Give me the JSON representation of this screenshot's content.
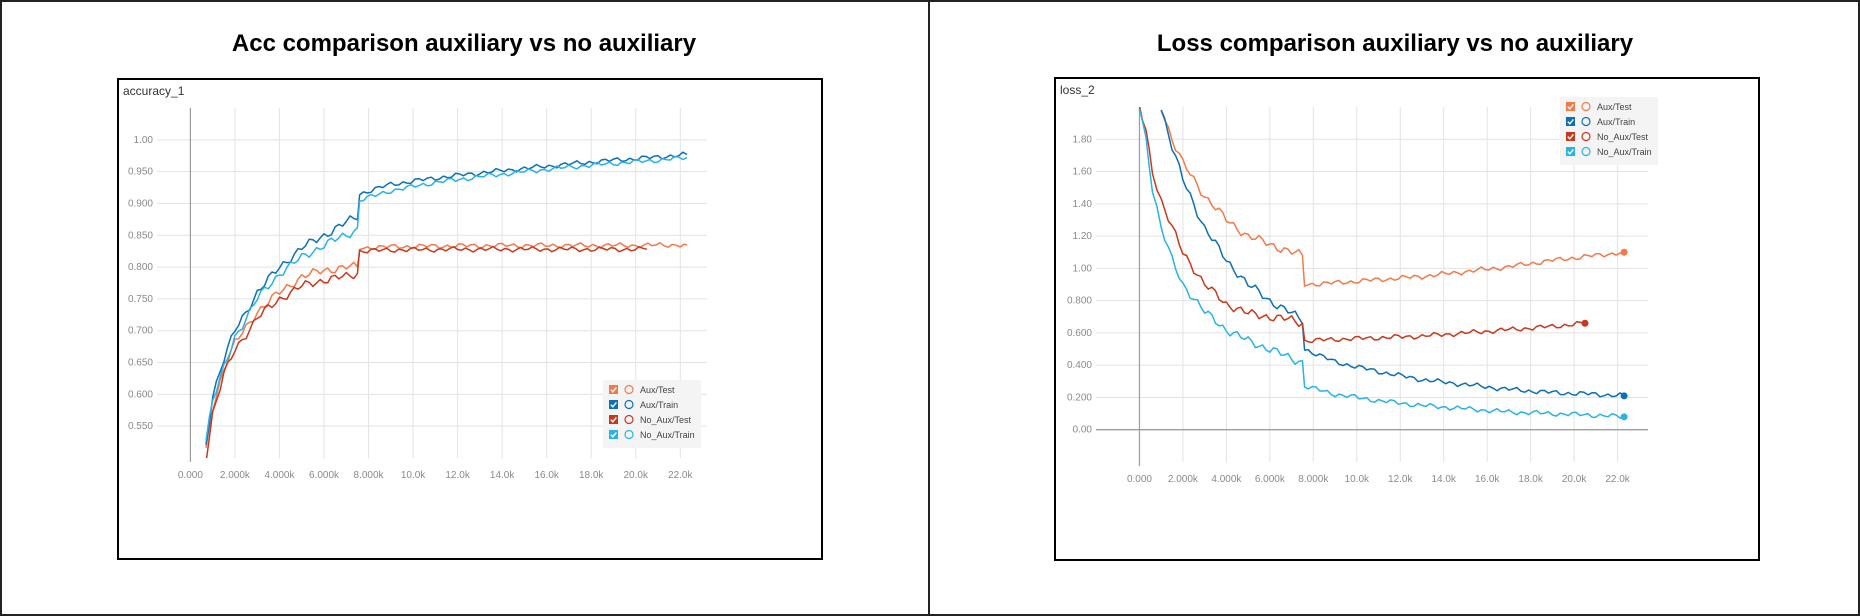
{
  "colors": {
    "aux_test": "#f4794a",
    "aux_train": "#0e6fb6",
    "no_aux_test": "#c9381e",
    "no_aux_train": "#29b2e6"
  },
  "legend_icons": [
    "checkbox-icon",
    "circle-icon"
  ],
  "chart_data": [
    {
      "type": "line",
      "title": "Acc comparison auxiliary vs no auxiliary",
      "plot_label": "accuracy_1",
      "xlabel": "",
      "ylabel": "",
      "xlim": [
        -1500,
        23200
      ],
      "ylim": [
        0.5,
        1.05
      ],
      "x_ticks": [
        0,
        2000,
        4000,
        6000,
        8000,
        10000,
        12000,
        14000,
        16000,
        18000,
        20000,
        22000
      ],
      "x_tick_labels": [
        "0.000",
        "2.000k",
        "4.000k",
        "6.000k",
        "8.000k",
        "10.0k",
        "12.0k",
        "14.0k",
        "16.0k",
        "18.0k",
        "20.0k",
        "22.0k"
      ],
      "y_ticks": [
        0.55,
        0.6,
        0.65,
        0.7,
        0.75,
        0.8,
        0.85,
        0.9,
        0.95,
        1.0
      ],
      "y_tick_labels": [
        "0.550",
        "0.600",
        "0.650",
        "0.700",
        "0.750",
        "0.800",
        "0.850",
        "0.900",
        "0.950",
        "1.00"
      ],
      "grid": true,
      "legend": "bottom-right",
      "series": [
        {
          "name": "Aux/Test",
          "color_key": "aux_test",
          "x": [
            700,
            1000,
            1500,
            2000,
            3000,
            4000,
            5000,
            6000,
            7000,
            7500,
            7600,
            9000,
            11000,
            14000,
            17000,
            20000,
            22000,
            22300
          ],
          "y": [
            0.51,
            0.58,
            0.64,
            0.68,
            0.73,
            0.76,
            0.785,
            0.795,
            0.8,
            0.8,
            0.83,
            0.832,
            0.833,
            0.834,
            0.834,
            0.834,
            0.835,
            0.835
          ]
        },
        {
          "name": "Aux/Train",
          "color_key": "aux_train",
          "x": [
            700,
            1000,
            1500,
            2000,
            3000,
            4000,
            5000,
            6000,
            7000,
            7500,
            7600,
            9000,
            11000,
            13000,
            15000,
            17000,
            19000,
            21000,
            22300
          ],
          "y": [
            0.52,
            0.6,
            0.655,
            0.7,
            0.76,
            0.8,
            0.83,
            0.85,
            0.87,
            0.88,
            0.915,
            0.93,
            0.94,
            0.948,
            0.955,
            0.962,
            0.968,
            0.973,
            0.977
          ]
        },
        {
          "name": "No_Aux/Test",
          "color_key": "no_aux_test",
          "x": [
            700,
            1000,
            1500,
            2000,
            3000,
            4000,
            5000,
            6000,
            7000,
            7500,
            7600,
            9000,
            12000,
            15000,
            18000,
            20500
          ],
          "y": [
            0.5,
            0.57,
            0.63,
            0.67,
            0.72,
            0.75,
            0.77,
            0.78,
            0.785,
            0.79,
            0.825,
            0.827,
            0.828,
            0.828,
            0.828,
            0.828
          ]
        },
        {
          "name": "No_Aux/Train",
          "color_key": "no_aux_train",
          "x": [
            700,
            1000,
            1500,
            2000,
            3000,
            4000,
            5000,
            6000,
            7000,
            7500,
            7600,
            9000,
            11000,
            13000,
            15000,
            17000,
            19000,
            21000,
            22300
          ],
          "y": [
            0.53,
            0.59,
            0.64,
            0.69,
            0.75,
            0.79,
            0.815,
            0.835,
            0.85,
            0.86,
            0.905,
            0.92,
            0.933,
            0.942,
            0.95,
            0.957,
            0.963,
            0.968,
            0.972
          ]
        }
      ]
    },
    {
      "type": "line",
      "title": "Loss comparison auxiliary vs no auxiliary",
      "plot_label": "loss_2",
      "xlabel": "",
      "ylabel": "",
      "xlim": [
        -2000,
        23400
      ],
      "ylim": [
        -0.2,
        2.0
      ],
      "x_ticks": [
        0,
        2000,
        4000,
        6000,
        8000,
        10000,
        12000,
        14000,
        16000,
        18000,
        20000,
        22000
      ],
      "x_tick_labels": [
        "0.000",
        "2.000k",
        "4.000k",
        "6.000k",
        "8.000k",
        "10.0k",
        "12.0k",
        "14.0k",
        "16.0k",
        "18.0k",
        "20.0k",
        "22.0k"
      ],
      "y_ticks": [
        0,
        0.2,
        0.4,
        0.6,
        0.8,
        1.0,
        1.2,
        1.4,
        1.6,
        1.8
      ],
      "y_tick_labels": [
        "0.00",
        "0.200",
        "0.400",
        "0.600",
        "0.800",
        "1.00",
        "1.20",
        "1.40",
        "1.60",
        "1.80"
      ],
      "grid": true,
      "legend": "top-right",
      "series": [
        {
          "name": "Aux/Test",
          "color_key": "aux_test",
          "x": [
            1000,
            1500,
            2000,
            3000,
            4000,
            5000,
            6000,
            7000,
            7500,
            7600,
            9000,
            11000,
            13000,
            15000,
            17000,
            19000,
            21000,
            22300
          ],
          "y": [
            2.0,
            1.8,
            1.65,
            1.45,
            1.3,
            1.2,
            1.15,
            1.1,
            1.08,
            0.9,
            0.91,
            0.93,
            0.95,
            0.98,
            1.01,
            1.05,
            1.08,
            1.1
          ]
        },
        {
          "name": "Aux/Train",
          "color_key": "aux_train",
          "x": [
            1000,
            1500,
            2000,
            3000,
            4000,
            5000,
            6000,
            7000,
            7500,
            7600,
            9000,
            11000,
            13000,
            15000,
            17000,
            19000,
            21000,
            22300
          ],
          "y": [
            2.0,
            1.75,
            1.55,
            1.25,
            1.05,
            0.9,
            0.8,
            0.72,
            0.68,
            0.5,
            0.42,
            0.36,
            0.31,
            0.28,
            0.25,
            0.23,
            0.22,
            0.21
          ]
        },
        {
          "name": "No_Aux/Test",
          "color_key": "no_aux_test",
          "x": [
            0,
            300,
            600,
            1000,
            1500,
            2000,
            3000,
            4000,
            5000,
            6000,
            7000,
            7500,
            7600,
            9000,
            11000,
            13000,
            15000,
            17000,
            19000,
            20500
          ],
          "y": [
            2.0,
            1.85,
            1.6,
            1.42,
            1.25,
            1.1,
            0.9,
            0.78,
            0.72,
            0.7,
            0.68,
            0.66,
            0.55,
            0.56,
            0.57,
            0.58,
            0.6,
            0.62,
            0.64,
            0.66
          ]
        },
        {
          "name": "No_Aux/Train",
          "color_key": "no_aux_train",
          "x": [
            0,
            300,
            600,
            1000,
            1500,
            2000,
            3000,
            4000,
            5000,
            6000,
            7000,
            7500,
            7600,
            9000,
            11000,
            13000,
            15000,
            17000,
            19000,
            21000,
            22300
          ],
          "y": [
            2.0,
            1.8,
            1.5,
            1.25,
            1.05,
            0.9,
            0.73,
            0.62,
            0.55,
            0.5,
            0.44,
            0.42,
            0.27,
            0.22,
            0.18,
            0.15,
            0.13,
            0.11,
            0.1,
            0.09,
            0.08
          ]
        }
      ]
    }
  ]
}
